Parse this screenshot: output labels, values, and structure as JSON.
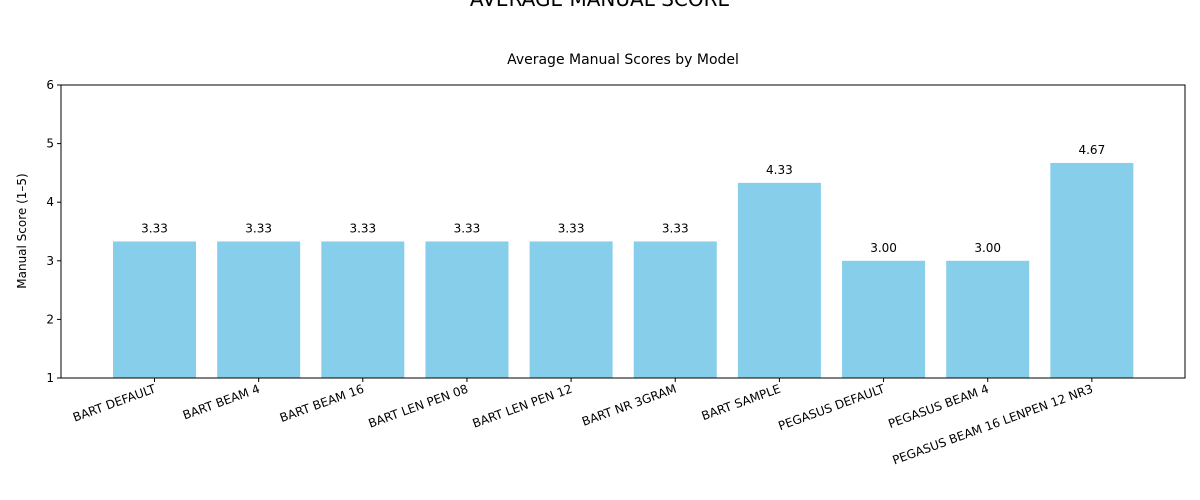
{
  "figure": {
    "suptitle": "AVERAGE MANUAL SCORE"
  },
  "chart_data": {
    "type": "bar",
    "title": "Average Manual Scores by Model",
    "xlabel": "",
    "ylabel": "Manual Score (1–5)",
    "ylim": [
      1,
      6
    ],
    "yticks": [
      "1",
      "2",
      "3",
      "4",
      "5",
      "6"
    ],
    "categories": [
      "BART DEFAULT",
      "BART BEAM 4",
      "BART BEAM 16",
      "BART LEN PEN 08",
      "BART LEN PEN 12",
      "BART NR 3GRAM",
      "BART SAMPLE",
      "PEGASUS DEFAULT",
      "PEGASUS BEAM 4",
      "PEGASUS BEAM 16 LENPEN 12 NR3"
    ],
    "values": [
      3.33,
      3.33,
      3.33,
      3.33,
      3.33,
      3.33,
      4.33,
      3.0,
      3.0,
      4.67
    ],
    "data_labels": [
      "3.33",
      "3.33",
      "3.33",
      "3.33",
      "3.33",
      "3.33",
      "4.33",
      "3.00",
      "3.00",
      "4.67"
    ],
    "bar_color": "#87ceeb",
    "grid": false,
    "legend": "none"
  }
}
